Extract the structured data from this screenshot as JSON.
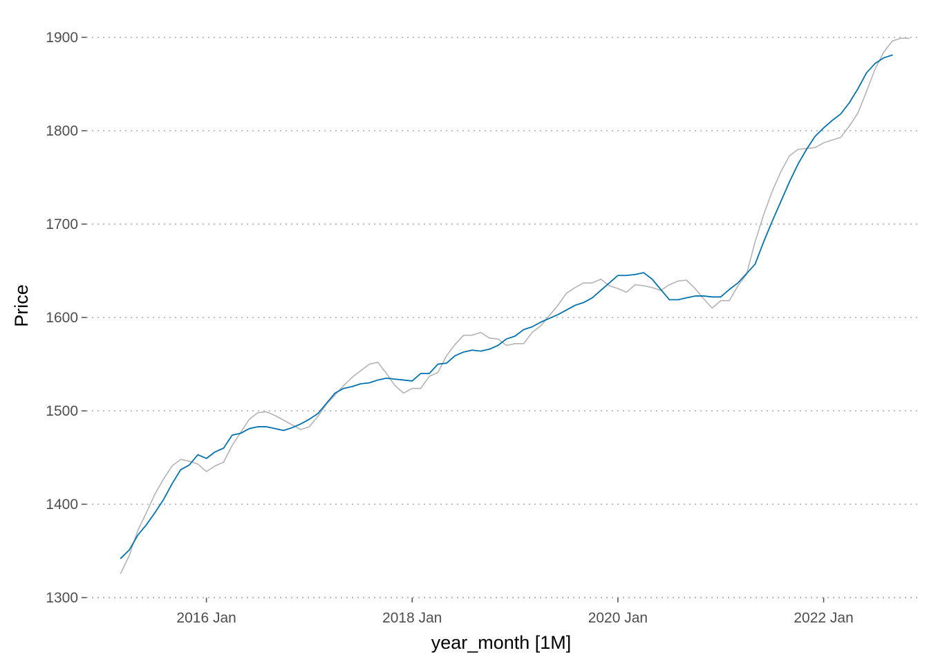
{
  "chart_data": {
    "type": "line",
    "title": "",
    "xlabel": "year_month [1M]",
    "ylabel": "Price",
    "x_start": "2015-03",
    "xlim": [
      "2014-11",
      "2022-12"
    ],
    "ylim": [
      1300,
      1900
    ],
    "y_ticks": [
      1300,
      1400,
      1500,
      1600,
      1700,
      1800,
      1900
    ],
    "x_ticks": [
      {
        "date": "2016-01",
        "label": "2016 Jan"
      },
      {
        "date": "2018-01",
        "label": "2018 Jan"
      },
      {
        "date": "2020-01",
        "label": "2020 Jan"
      },
      {
        "date": "2022-01",
        "label": "2022 Jan"
      }
    ],
    "grid": "horizontal dotted",
    "legend": "none",
    "series": [
      {
        "color": "#b3b3b3",
        "values": [
          1326,
          1345,
          1372,
          1391,
          1411,
          1427,
          1441,
          1448,
          1446,
          1443,
          1435,
          1441,
          1445,
          1463,
          1477,
          1491,
          1498,
          1499,
          1495,
          1490,
          1485,
          1480,
          1483,
          1494,
          1507,
          1517,
          1527,
          1536,
          1543,
          1550,
          1552,
          1540,
          1527,
          1519,
          1524,
          1524,
          1537,
          1541,
          1559,
          1571,
          1581,
          1581,
          1584,
          1578,
          1577,
          1570,
          1572,
          1572,
          1584,
          1591,
          1602,
          1613,
          1626,
          1632,
          1637,
          1637,
          1641,
          1634,
          1631,
          1627,
          1635,
          1634,
          1632,
          1629,
          1635,
          1639,
          1640,
          1631,
          1620,
          1610,
          1618,
          1618,
          1634,
          1646,
          1681,
          1710,
          1735,
          1756,
          1773,
          1780,
          1781,
          1782,
          1787,
          1790,
          1793,
          1805,
          1819,
          1842,
          1866,
          1884,
          1896,
          1899,
          1899
        ]
      },
      {
        "color": "#0072b2",
        "values": [
          1342,
          1351,
          1367,
          1378,
          1391,
          1405,
          1422,
          1437,
          1442,
          1453,
          1449,
          1456,
          1460,
          1474,
          1476,
          1481,
          1483,
          1483,
          1481,
          1479,
          1482,
          1486,
          1491,
          1497,
          1508,
          1519,
          1524,
          1526,
          1529,
          1530,
          1533,
          1535,
          1534,
          1533,
          1532,
          1540,
          1540,
          1550,
          1551,
          1559,
          1563,
          1565,
          1564,
          1566,
          1570,
          1577,
          1580,
          1587,
          1590,
          1595,
          1599,
          1603,
          1608,
          1613,
          1616,
          1621,
          1629,
          1637,
          1645,
          1645,
          1646,
          1648,
          1641,
          1630,
          1619,
          1619,
          1621,
          1623,
          1623,
          1622,
          1622,
          1630,
          1637,
          1647,
          1657,
          1681,
          1703,
          1724,
          1745,
          1764,
          1780,
          1794,
          1803,
          1811,
          1818,
          1830,
          1845,
          1862,
          1872,
          1878,
          1881
        ]
      }
    ]
  }
}
